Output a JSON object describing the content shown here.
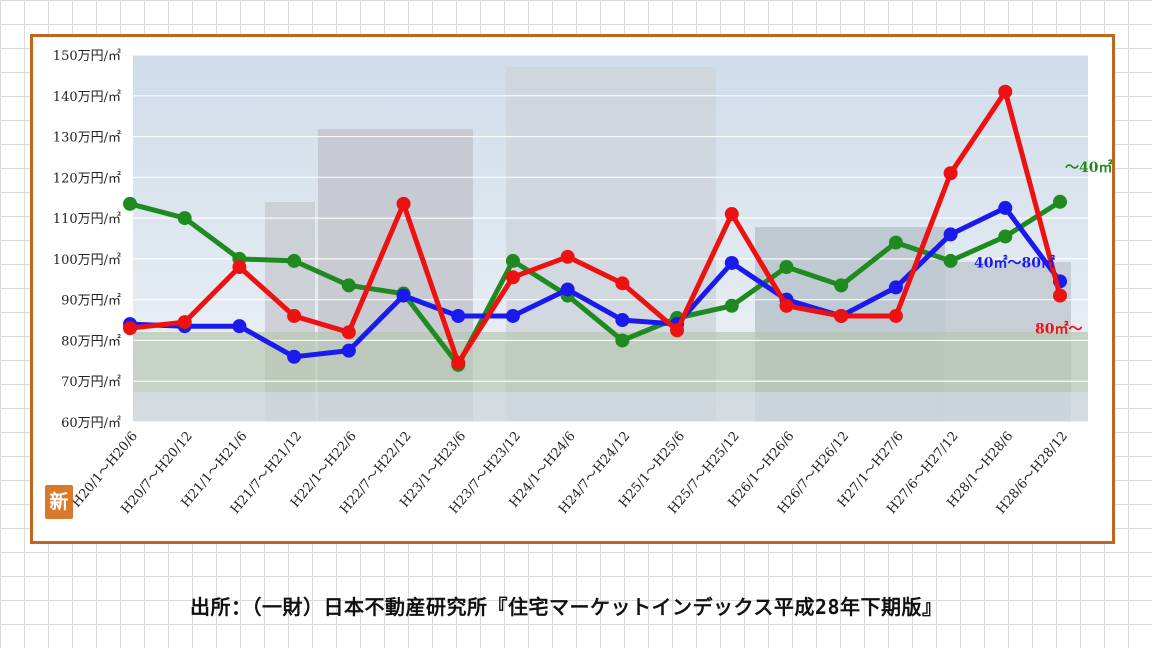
{
  "chart_data": {
    "type": "line",
    "title": "",
    "xlabel": "",
    "ylabel": "",
    "ylim": [
      60,
      150
    ],
    "yticks": [
      "150万円/㎡",
      "140万円/㎡",
      "130万円/㎡",
      "120万円/㎡",
      "110万円/㎡",
      "100万円/㎡",
      "90万円/㎡",
      "80万円/㎡",
      "70万円/㎡",
      "60万円/㎡"
    ],
    "ytick_values": [
      150,
      140,
      130,
      120,
      110,
      100,
      90,
      80,
      70,
      60
    ],
    "categories": [
      "H20/1〜H20/6",
      "H20/7〜H20/12",
      "H21/1〜H21/6",
      "H21/7〜H21/12",
      "H22/1〜H22/6",
      "H22/7〜H22/12",
      "H23/1〜H23/6",
      "H23/7〜H23/12",
      "H24/1〜H24/6",
      "H24/7〜H24/12",
      "H25/1〜H25/6",
      "H25/7〜H25/12",
      "H26/1〜H26/6",
      "H26/7〜H26/12",
      "H27/1〜H27/6",
      "H27/6〜H27/12",
      "H28/1〜H28/6",
      "H28/6〜H28/12"
    ],
    "grid": true,
    "series": [
      {
        "name": "〜40㎡",
        "color": "#1f8a1f",
        "values": [
          113.5,
          110,
          100,
          99.5,
          93.5,
          91.5,
          74,
          99.5,
          91,
          80,
          85.5,
          88.5,
          98,
          93.5,
          104,
          99.5,
          105.5,
          114
        ]
      },
      {
        "name": "40㎡〜80㎡",
        "color": "#1a1aee",
        "values": [
          84,
          83.5,
          83.5,
          76,
          77.5,
          91,
          86,
          86,
          92.5,
          85,
          84,
          99,
          90,
          86,
          93,
          106,
          112.5,
          94.5
        ]
      },
      {
        "name": "80㎡〜",
        "color": "#ee1111",
        "values": [
          83,
          84.5,
          98,
          86,
          82,
          113.5,
          74.5,
          95.5,
          100.5,
          94,
          82.5,
          111,
          88.5,
          86,
          86,
          121,
          141,
          91
        ]
      }
    ]
  },
  "badge_text": "新",
  "source_note": "出所：（一財）日本不動産研究所『住宅マーケットインデックス平成28年下期版』"
}
